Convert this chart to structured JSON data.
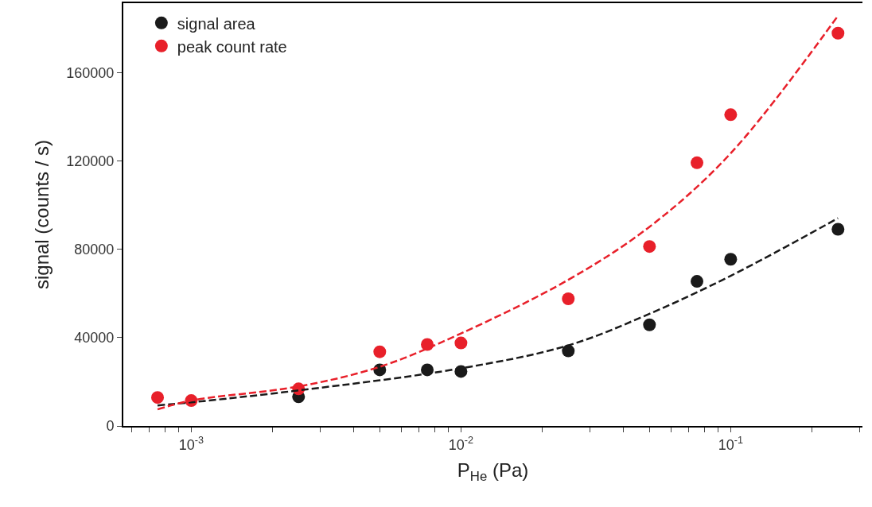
{
  "chart_data": {
    "type": "scatter",
    "xlabel": "P$_{He}$ (Pa)",
    "ylabel": "signal (counts / s)",
    "log": "x",
    "xlim": [
      0.00056,
      0.308
    ],
    "ylim": [
      0,
      191500
    ],
    "xticks": [
      {
        "value": 0.0006,
        "label": null
      },
      {
        "value": 0.0007,
        "label": null
      },
      {
        "value": 0.0008,
        "label": null
      },
      {
        "value": 0.0009,
        "label": null
      },
      {
        "value": 0.001,
        "label": "10$^{-3}$"
      },
      {
        "value": 0.002,
        "label": null
      },
      {
        "value": 0.003,
        "label": null
      },
      {
        "value": 0.004,
        "label": null
      },
      {
        "value": 0.005,
        "label": null
      },
      {
        "value": 0.006,
        "label": null
      },
      {
        "value": 0.007,
        "label": null
      },
      {
        "value": 0.008,
        "label": null
      },
      {
        "value": 0.009,
        "label": null
      },
      {
        "value": 0.01,
        "label": "10$^{-2}$"
      },
      {
        "value": 0.02,
        "label": null
      },
      {
        "value": 0.03,
        "label": null
      },
      {
        "value": 0.04,
        "label": null
      },
      {
        "value": 0.05,
        "label": null
      },
      {
        "value": 0.06,
        "label": null
      },
      {
        "value": 0.07,
        "label": null
      },
      {
        "value": 0.08,
        "label": null
      },
      {
        "value": 0.09,
        "label": null
      },
      {
        "value": 0.1,
        "label": "10$^{-1}$"
      },
      {
        "value": 0.2,
        "label": null
      },
      {
        "value": 0.3,
        "label": null
      }
    ],
    "yticks": [
      0,
      40000,
      80000,
      120000,
      160000
    ],
    "legend": "top left",
    "marker": "circle",
    "x": [
      0.00075,
      0.001,
      0.0025,
      0.005,
      0.0075,
      0.01,
      0.025,
      0.05,
      0.075,
      0.1,
      0.25
    ],
    "series": [
      {
        "name": "signal area",
        "color": "#1a1a1a",
        "values": [
          null,
          null,
          13200,
          25400,
          25400,
          24700,
          34000,
          45800,
          65500,
          75500,
          89100
        ]
      },
      {
        "name": "peak count rate",
        "color": "#e8202a",
        "values": [
          12900,
          11500,
          16800,
          33600,
          36900,
          37600,
          57600,
          81300,
          119200,
          141000,
          177900
        ]
      },
      {
        "type": "line",
        "color": "#1a1a1a",
        "line_style": "dashed",
        "marker": "none",
        "x": [
          0.00075,
          0.001,
          0.0025,
          0.01,
          0.025,
          0.05,
          0.1,
          0.25
        ],
        "values": [
          9300,
          10700,
          16100,
          26100,
          36500,
          50800,
          68000,
          94100
        ]
      },
      {
        "type": "line",
        "color": "#e8202a",
        "line_style": "dashed",
        "marker": "none",
        "x": [
          0.00075,
          0.001,
          0.0025,
          0.005,
          0.01,
          0.025,
          0.05,
          0.1,
          0.25
        ],
        "values": [
          7500,
          11500,
          17900,
          26800,
          41900,
          66200,
          90200,
          123500,
          185800
        ]
      }
    ]
  }
}
